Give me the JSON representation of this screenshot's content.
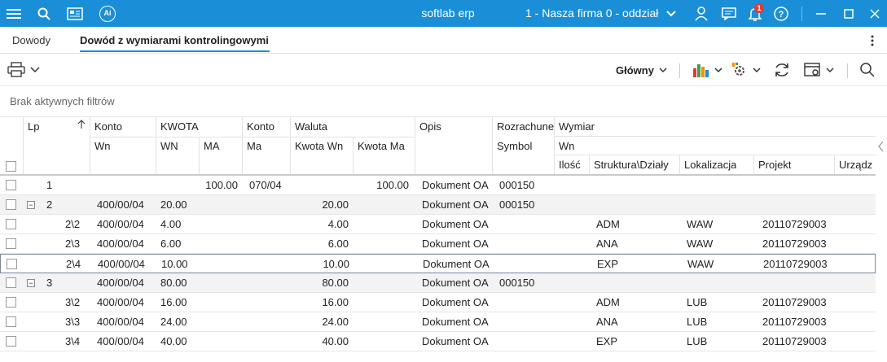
{
  "titlebar": {
    "app_name": "softlab erp",
    "company": "1 - Nasza firma 0 - oddział",
    "notification_count": "1",
    "ai_label": "Ai"
  },
  "tabs": [
    {
      "label": "Dowody"
    },
    {
      "label": "Dowód z wymiarami kontrolingowymi |"
    }
  ],
  "toolbar": {
    "view_label": "Główny"
  },
  "filter": {
    "text": "Brak aktywnych filtrów"
  },
  "columns": {
    "lp": "Lp",
    "konto": "Konto",
    "konto_wn": "Wn",
    "kwota": "KWOTA",
    "kwota_wn": "WN",
    "kwota_ma": "MA",
    "konto2": "Konto",
    "konto2_ma": "Ma",
    "waluta": "Waluta",
    "kwota_wn2": "Kwota Wn",
    "kwota_ma2": "Kwota Ma",
    "opis": "Opis",
    "rozrachunek": "Rozrachune",
    "symbol": "Symbol",
    "wymiar": "Wymiar",
    "wymiar_wn": "Wn",
    "ilosc": "Ilość",
    "struktura": "Struktura\\Działy",
    "lokalizacja": "Lokalizacja",
    "projekt": "Projekt",
    "urzadzenie": "Urządz"
  },
  "rows": [
    {
      "lp": "1",
      "konto_wn": "",
      "wn": "",
      "ma": "100.00",
      "konto_ma": "070/04",
      "kwota_wn": "",
      "kwota_ma": "100.00",
      "opis": "Dokument OA",
      "symbol": "000150",
      "struktura": "",
      "lokalizacja": "",
      "projekt": ""
    },
    {
      "lp": "2",
      "konto_wn": "400/00/04",
      "wn": "20.00",
      "ma": "",
      "konto_ma": "",
      "kwota_wn": "20.00",
      "kwota_ma": "",
      "opis": "Dokument OA",
      "symbol": "000150",
      "struktura": "",
      "lokalizacja": "",
      "projekt": ""
    },
    {
      "lp": "2\\2",
      "konto_wn": "400/00/04",
      "wn": "4.00",
      "ma": "",
      "konto_ma": "",
      "kwota_wn": "4.00",
      "kwota_ma": "",
      "opis": "Dokument OA",
      "symbol": "",
      "struktura": "ADM",
      "lokalizacja": "WAW",
      "projekt": "20110729003"
    },
    {
      "lp": "2\\3",
      "konto_wn": "400/00/04",
      "wn": "6.00",
      "ma": "",
      "konto_ma": "",
      "kwota_wn": "6.00",
      "kwota_ma": "",
      "opis": "Dokument OA",
      "symbol": "",
      "struktura": "ANA",
      "lokalizacja": "WAW",
      "projekt": "20110729003"
    },
    {
      "lp": "2\\4",
      "konto_wn": "400/00/04",
      "wn": "10.00",
      "ma": "",
      "konto_ma": "",
      "kwota_wn": "10.00",
      "kwota_ma": "",
      "opis": "Dokument OA",
      "symbol": "",
      "struktura": "EXP",
      "lokalizacja": "WAW",
      "projekt": "20110729003"
    },
    {
      "lp": "3",
      "konto_wn": "400/00/04",
      "wn": "80.00",
      "ma": "",
      "konto_ma": "",
      "kwota_wn": "80.00",
      "kwota_ma": "",
      "opis": "Dokument OA",
      "symbol": "000150",
      "struktura": "",
      "lokalizacja": "",
      "projekt": ""
    },
    {
      "lp": "3\\2",
      "konto_wn": "400/00/04",
      "wn": "16.00",
      "ma": "",
      "konto_ma": "",
      "kwota_wn": "16.00",
      "kwota_ma": "",
      "opis": "Dokument OA",
      "symbol": "",
      "struktura": "ADM",
      "lokalizacja": "LUB",
      "projekt": "20110729003"
    },
    {
      "lp": "3\\3",
      "konto_wn": "400/00/04",
      "wn": "24.00",
      "ma": "",
      "konto_ma": "",
      "kwota_wn": "24.00",
      "kwota_ma": "",
      "opis": "Dokument OA",
      "symbol": "",
      "struktura": "ANA",
      "lokalizacja": "LUB",
      "projekt": "20110729003"
    },
    {
      "lp": "3\\4",
      "konto_wn": "400/00/04",
      "wn": "40.00",
      "ma": "",
      "konto_ma": "",
      "kwota_wn": "40.00",
      "kwota_ma": "",
      "opis": "Dokument OA",
      "symbol": "",
      "struktura": "EXP",
      "lokalizacja": "LUB",
      "projekt": "20110729003"
    }
  ],
  "colors": {
    "accent": "#1a8fd8",
    "group_row": "#f3f3f3",
    "badge": "#e53935"
  }
}
